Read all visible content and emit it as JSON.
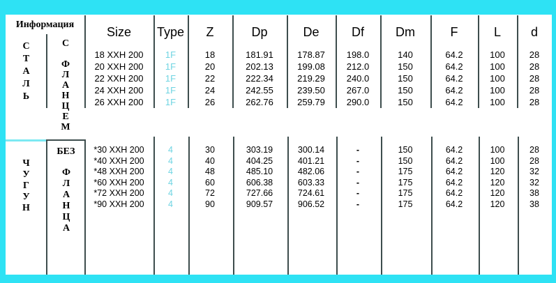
{
  "colors": {
    "background": "#2ee2f4",
    "paper": "#ffffff",
    "grid_line": "#3d4d4d",
    "cyan_divider": "#7ce9f2",
    "type_value": "#6fd4e2"
  },
  "info": {
    "header": "Информация",
    "material_top": "СТАЛЬ",
    "flange_top": "С ФЛАНЦЕМ",
    "material_bottom": "ЧУГУН",
    "flange_bottom_word1": "БЕЗ",
    "flange_bottom_word2": "ФЛАНЦА"
  },
  "columns": [
    "Size",
    "Type",
    "Z",
    "Dp",
    "De",
    "Df",
    "Dm",
    "F",
    "L",
    "d"
  ],
  "sections": [
    {
      "name": "steel-with-flange",
      "rows": [
        {
          "size": "18 XXH 200",
          "type": "1F",
          "z": "18",
          "dp": "181.91",
          "de": "178.87",
          "df": "198.0",
          "dm": "140",
          "f": "64.2",
          "l": "100",
          "d": "28"
        },
        {
          "size": "20 XXH 200",
          "type": "1F",
          "z": "20",
          "dp": "202.13",
          "de": "199.08",
          "df": "212.0",
          "dm": "150",
          "f": "64.2",
          "l": "100",
          "d": "28"
        },
        {
          "size": "22 XXH 200",
          "type": "1F",
          "z": "22",
          "dp": "222.34",
          "de": "219.29",
          "df": "240.0",
          "dm": "150",
          "f": "64.2",
          "l": "100",
          "d": "28"
        },
        {
          "size": "24 XXH 200",
          "type": "1F",
          "z": "24",
          "dp": "242.55",
          "de": "239.50",
          "df": "267.0",
          "dm": "150",
          "f": "64.2",
          "l": "100",
          "d": "28"
        },
        {
          "size": "26 XXH 200",
          "type": "1F",
          "z": "26",
          "dp": "262.76",
          "de": "259.79",
          "df": "290.0",
          "dm": "150",
          "f": "64.2",
          "l": "100",
          "d": "28"
        }
      ]
    },
    {
      "name": "cast-iron-without-flange",
      "rows": [
        {
          "size": "*30 XXH 200",
          "type": "4",
          "z": "30",
          "dp": "303.19",
          "de": "300.14",
          "df": "-",
          "dm": "150",
          "f": "64.2",
          "l": "100",
          "d": "28"
        },
        {
          "size": "*40 XXH 200",
          "type": "4",
          "z": "40",
          "dp": "404.25",
          "de": "401.21",
          "df": "-",
          "dm": "150",
          "f": "64.2",
          "l": "100",
          "d": "28"
        },
        {
          "size": "*48 XXH 200",
          "type": "4",
          "z": "48",
          "dp": "485.10",
          "de": "482.06",
          "df": "-",
          "dm": "175",
          "f": "64.2",
          "l": "120",
          "d": "32"
        },
        {
          "size": "*60 XXH 200",
          "type": "4",
          "z": "60",
          "dp": "606.38",
          "de": "603.33",
          "df": "-",
          "dm": "175",
          "f": "64.2",
          "l": "120",
          "d": "32"
        },
        {
          "size": "*72 XXH 200",
          "type": "4",
          "z": "72",
          "dp": "727.66",
          "de": "724.61",
          "df": "-",
          "dm": "175",
          "f": "64.2",
          "l": "120",
          "d": "38"
        },
        {
          "size": "*90 XXH 200",
          "type": "4",
          "z": "90",
          "dp": "909.57",
          "de": "906.52",
          "df": "-",
          "dm": "175",
          "f": "64.2",
          "l": "120",
          "d": "38"
        }
      ]
    }
  ]
}
